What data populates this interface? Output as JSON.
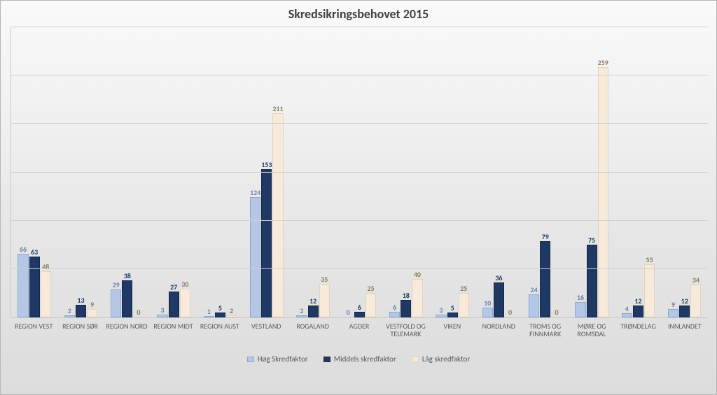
{
  "chart": {
    "type": "bar",
    "title": "Skredsikringsbehovet 2015",
    "title_fontsize": 18,
    "title_color": "#404040",
    "background_gradient_from": "#fafafa",
    "background_gradient_to": "#dcdcdc",
    "grid_color": "#d0d0d0",
    "border_color": "#b5b5b5",
    "category_fontsize": 10,
    "category_color": "#5a5a5a",
    "datalabel_fontsize": 10,
    "ymax": 300,
    "gridlines": 6,
    "bar_width_pct": 26,
    "categories": [
      "REGION VEST",
      "REGION SØR",
      "REGION NORD",
      "REGION MIDT",
      "REGION AUST",
      "VESTLAND",
      "ROGALAND",
      "AGDER",
      "VESTFOLD OG TELEMARK",
      "VIKEN",
      "NORDLAND",
      "TROMS OG FINNMARK",
      "MØRE OG ROMSDAL",
      "TRØNDELAG",
      "INNLANDET"
    ],
    "series": [
      {
        "name": "Høg Skredfaktor",
        "fill": "#b4c7e7",
        "border": "#8fa8cf",
        "label_color": "#6a84ae",
        "values": [
          66,
          2,
          29,
          3,
          1,
          124,
          2,
          0,
          6,
          3,
          10,
          24,
          16,
          4,
          9
        ]
      },
      {
        "name": "Middels skredfaktor",
        "fill": "#1f3864",
        "border": "#142846",
        "label_color": "#1f3864",
        "values": [
          63,
          13,
          38,
          27,
          5,
          153,
          12,
          6,
          18,
          5,
          36,
          79,
          75,
          12,
          12
        ]
      },
      {
        "name": "Låg skredfaktor",
        "fill": "#f7eadb",
        "border": "#e3d3bd",
        "label_color": "#8a7a60",
        "values": [
          48,
          9,
          0,
          30,
          2,
          211,
          35,
          25,
          40,
          25,
          0,
          0,
          259,
          55,
          34
        ]
      }
    ],
    "legend_fontsize": 11,
    "legend_color": "#5a5a5a"
  }
}
